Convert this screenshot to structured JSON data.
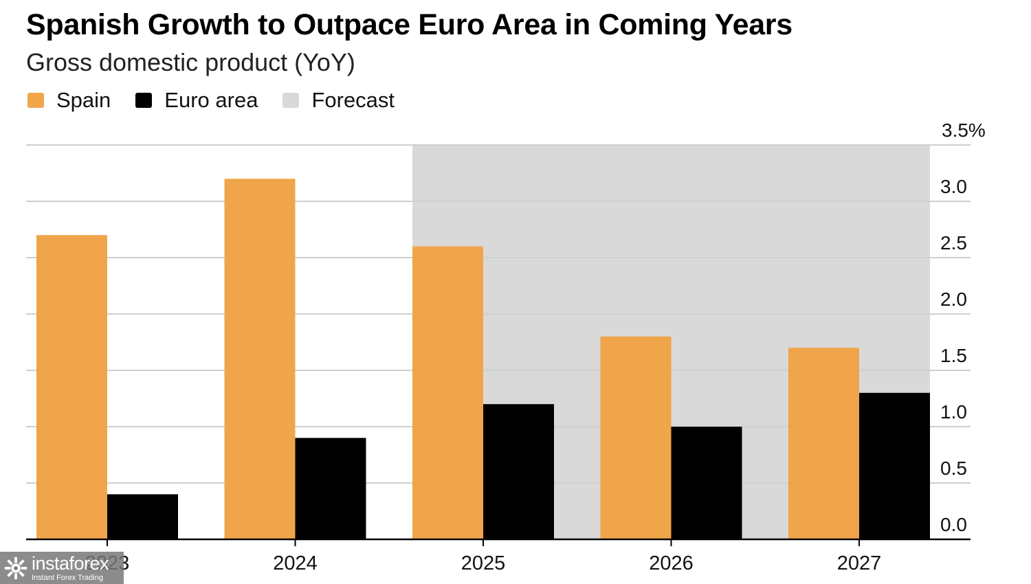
{
  "header": {
    "title": "Spanish Growth to Outpace Euro Area in Coming Years",
    "subtitle": "Gross domestic product (YoY)"
  },
  "legend": [
    {
      "label": "Spain",
      "color": "#F0A54A"
    },
    {
      "label": "Euro area",
      "color": "#000000"
    },
    {
      "label": "Forecast",
      "color": "#D9D9D9"
    }
  ],
  "chart_data": {
    "type": "bar",
    "title": "Spanish Growth to Outpace Euro Area in Coming Years",
    "subtitle": "Gross domestic product (YoY)",
    "categories": [
      "2023",
      "2024",
      "2025",
      "2026",
      "2027"
    ],
    "series": [
      {
        "name": "Spain",
        "color": "#F0A54A",
        "values": [
          2.7,
          3.2,
          2.6,
          1.8,
          1.7
        ]
      },
      {
        "name": "Euro area",
        "color": "#000000",
        "values": [
          0.4,
          0.9,
          1.2,
          1.0,
          1.3
        ]
      }
    ],
    "forecast_categories": [
      "2025",
      "2026",
      "2027"
    ],
    "forecast_color": "#D9D9D9",
    "ylim": [
      0,
      3.5
    ],
    "yticks": [
      0,
      0.5,
      1.0,
      1.5,
      2.0,
      2.5,
      3.0,
      3.5
    ],
    "ytick_labels": [
      "0.0",
      "0.5",
      "1.0",
      "1.5",
      "2.0",
      "2.5",
      "3.0",
      "3.5%"
    ],
    "y_axis_position": "right",
    "grid": true,
    "legend_position": "top-left"
  },
  "watermark": {
    "brand": "instaforex",
    "tagline": "Instant Forex Trading"
  }
}
